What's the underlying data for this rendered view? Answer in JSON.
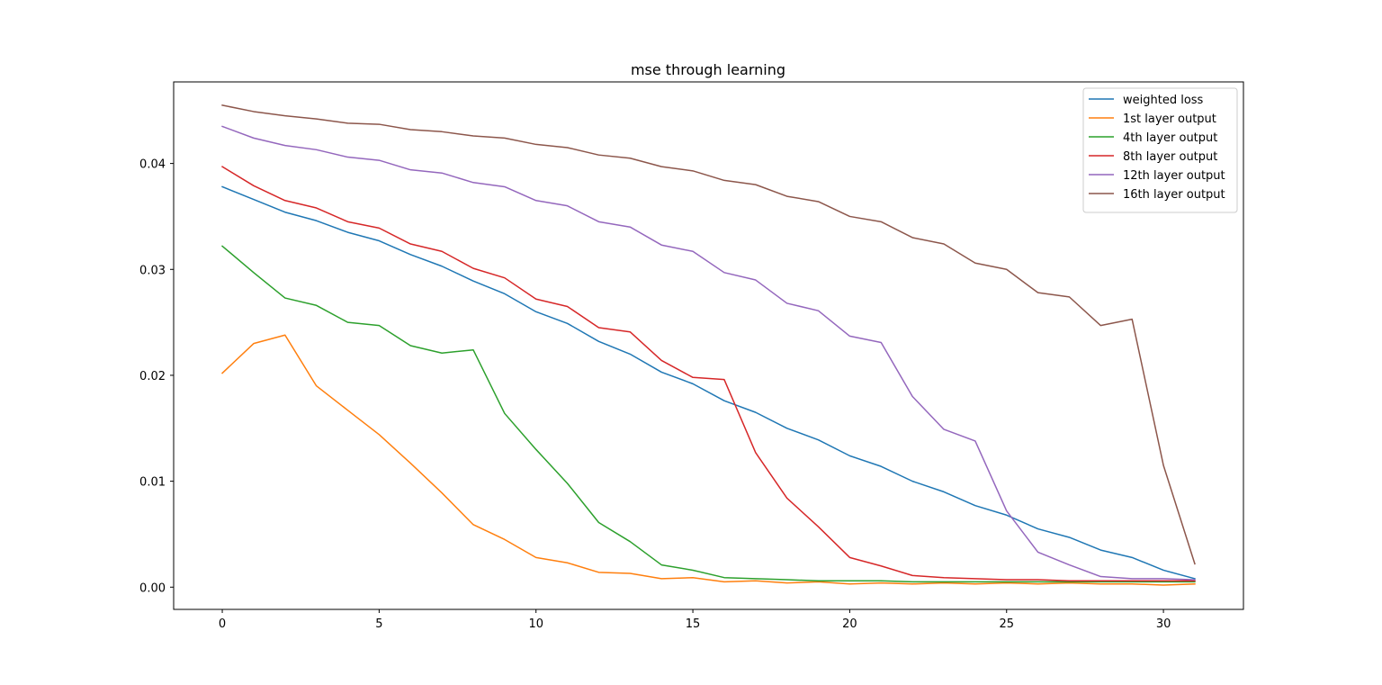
{
  "chart_data": {
    "type": "line",
    "title": "mse through learning",
    "xlabel": "",
    "ylabel": "",
    "xlim": [
      -1.55,
      32.55
    ],
    "ylim": [
      -0.0021,
      0.0477
    ],
    "xticks": [
      0,
      5,
      10,
      15,
      20,
      25,
      30
    ],
    "yticks": [
      0.0,
      0.01,
      0.02,
      0.03,
      0.04
    ],
    "ytick_labels": [
      "0.00",
      "0.01",
      "0.02",
      "0.03",
      "0.04"
    ],
    "grid": false,
    "legend_position": "top-right",
    "x": [
      0,
      1,
      2,
      3,
      4,
      5,
      6,
      7,
      8,
      9,
      10,
      11,
      12,
      13,
      14,
      15,
      16,
      17,
      18,
      19,
      20,
      21,
      22,
      23,
      24,
      25,
      26,
      27,
      28,
      29,
      30,
      31
    ],
    "series": [
      {
        "name": "weighted loss",
        "color": "#1f77b4",
        "values": [
          0.0378,
          0.0366,
          0.0354,
          0.0346,
          0.0335,
          0.0327,
          0.0314,
          0.0303,
          0.0289,
          0.0277,
          0.026,
          0.0249,
          0.0232,
          0.022,
          0.0203,
          0.0192,
          0.0176,
          0.0165,
          0.015,
          0.0139,
          0.0124,
          0.0114,
          0.01,
          0.009,
          0.0077,
          0.0068,
          0.0055,
          0.0047,
          0.0035,
          0.0028,
          0.0016,
          0.0008
        ]
      },
      {
        "name": "1st layer output",
        "color": "#ff7f0e",
        "values": [
          0.0202,
          0.023,
          0.0238,
          0.019,
          0.0167,
          0.0144,
          0.0117,
          0.0089,
          0.0059,
          0.0045,
          0.0028,
          0.0023,
          0.0014,
          0.0013,
          0.0008,
          0.0009,
          0.0005,
          0.0006,
          0.0004,
          0.0005,
          0.0003,
          0.0004,
          0.0003,
          0.0004,
          0.0003,
          0.0004,
          0.0003,
          0.0004,
          0.0003,
          0.0003,
          0.0002,
          0.0003
        ]
      },
      {
        "name": "4th layer output",
        "color": "#2ca02c",
        "values": [
          0.0322,
          0.0297,
          0.0273,
          0.0266,
          0.025,
          0.0247,
          0.0228,
          0.0221,
          0.0224,
          0.0164,
          0.013,
          0.0098,
          0.0061,
          0.0043,
          0.0021,
          0.0016,
          0.0009,
          0.0008,
          0.0007,
          0.0006,
          0.0006,
          0.0006,
          0.0005,
          0.0005,
          0.0005,
          0.0005,
          0.0005,
          0.0005,
          0.0005,
          0.0005,
          0.0005,
          0.0005
        ]
      },
      {
        "name": "8th layer output",
        "color": "#d62728",
        "values": [
          0.0397,
          0.0379,
          0.0365,
          0.0358,
          0.0345,
          0.0339,
          0.0324,
          0.0317,
          0.0301,
          0.0292,
          0.0272,
          0.0265,
          0.0245,
          0.0241,
          0.0214,
          0.0198,
          0.0196,
          0.0127,
          0.0084,
          0.0057,
          0.0028,
          0.002,
          0.0011,
          0.0009,
          0.0008,
          0.0007,
          0.0007,
          0.0006,
          0.0006,
          0.0006,
          0.0006,
          0.0006
        ]
      },
      {
        "name": "12th layer output",
        "color": "#9467bd",
        "values": [
          0.0435,
          0.0424,
          0.0417,
          0.0413,
          0.0406,
          0.0403,
          0.0394,
          0.0391,
          0.0382,
          0.0378,
          0.0365,
          0.036,
          0.0345,
          0.034,
          0.0323,
          0.0317,
          0.0297,
          0.029,
          0.0268,
          0.0261,
          0.0237,
          0.0231,
          0.018,
          0.0149,
          0.0138,
          0.0072,
          0.0033,
          0.0021,
          0.001,
          0.0008,
          0.0008,
          0.0007
        ]
      },
      {
        "name": "16th layer output",
        "color": "#8c564b",
        "values": [
          0.0455,
          0.0449,
          0.0445,
          0.0442,
          0.0438,
          0.0437,
          0.0432,
          0.043,
          0.0426,
          0.0424,
          0.0418,
          0.0415,
          0.0408,
          0.0405,
          0.0397,
          0.0393,
          0.0384,
          0.038,
          0.0369,
          0.0364,
          0.035,
          0.0345,
          0.033,
          0.0324,
          0.0306,
          0.03,
          0.0278,
          0.0274,
          0.0247,
          0.0253,
          0.0115,
          0.0022
        ]
      }
    ]
  }
}
